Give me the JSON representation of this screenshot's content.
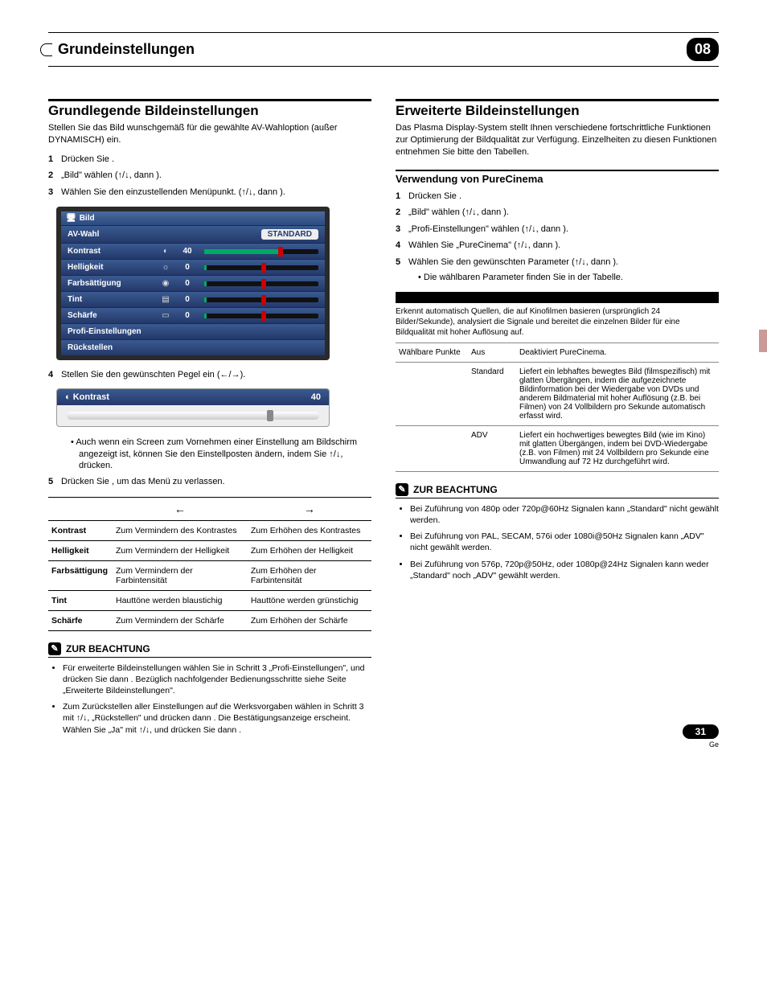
{
  "header": {
    "title": "Grundeinstellungen",
    "chapter": "08"
  },
  "left": {
    "section_title": "Grundlegende Bildeinstellungen",
    "intro": "Stellen Sie das Bild wunschgemäß für die gewählte AV-Wahloption (außer DYNAMISCH) ein.",
    "steps": {
      "s1_pre": "Drücken Sie ",
      "s2_pre": "„Bild\" wählen (",
      "s2_mid": ", dann ",
      "s2_post": ").",
      "s3_pre": "Wählen Sie den einzustellenden Menüpunkt. (",
      "s3_mid": ", dann ",
      "s3_post": ").",
      "s4_pre": "Stellen Sie den gewünschten Pegel ein (",
      "s4_post": ").",
      "bullet1": "Auch wenn ein Screen zum Vornehmen einer Einstellung am Bildschirm angezeigt ist, können Sie den Einstellposten ändern, indem Sie ↑/↓, drücken.",
      "s5_pre": "Drücken Sie ",
      "s5_post": ", um das Menü zu verlassen."
    },
    "menu": {
      "title": "Bild",
      "rows": [
        {
          "label": "AV-Wahl",
          "icon": "",
          "value": "",
          "badge": "STANDARD",
          "fill": 0,
          "thumb": 0,
          "show_slider": false
        },
        {
          "label": "Kontrast",
          "icon": "◐",
          "value": "40",
          "fill": 65,
          "thumb": 65,
          "show_slider": true
        },
        {
          "label": "Helligkeit",
          "icon": "☼",
          "value": "0",
          "fill": 2,
          "thumb": 50,
          "show_slider": true
        },
        {
          "label": "Farbsättigung",
          "icon": "◉",
          "value": "0",
          "fill": 2,
          "thumb": 50,
          "show_slider": true
        },
        {
          "label": "Tint",
          "icon": "�held",
          "value": "0",
          "fill": 2,
          "thumb": 50,
          "show_slider": true,
          "icon2": "▤"
        },
        {
          "label": "Schärfe",
          "icon": "▭",
          "value": "0",
          "fill": 2,
          "thumb": 50,
          "show_slider": true
        },
        {
          "label": "Profi-Einstellungen",
          "icon": "",
          "value": "",
          "show_slider": false
        },
        {
          "label": "Rückstellen",
          "icon": "",
          "value": "",
          "show_slider": false
        }
      ]
    },
    "contrast_popup": {
      "label": "Kontrast",
      "value": "40"
    },
    "adjust_table": {
      "rows": [
        {
          "label": "Kontrast",
          "left": "Zum Vermindern des Kontrastes",
          "right": "Zum Erhöhen des Kontrastes"
        },
        {
          "label": "Helligkeit",
          "left": "Zum Vermindern der Helligkeit",
          "right": "Zum Erhöhen der Helligkeit"
        },
        {
          "label": "Farbsättigung",
          "left": "Zum Vermindern der Farbintensität",
          "right": "Zum Erhöhen der Farbintensität"
        },
        {
          "label": "Tint",
          "left": "Hauttöne werden blaustichig",
          "right": "Hauttöne werden grünstichig"
        },
        {
          "label": "Schärfe",
          "left": "Zum Vermindern der Schärfe",
          "right": "Zum Erhöhen der Schärfe"
        }
      ]
    },
    "note_title": "ZUR BEACHTUNG",
    "notes": [
      "Für erweiterte Bildeinstellungen wählen Sie in Schritt 3 „Profi-Einstellungen\", und drücken Sie dann . Bezüglich nachfolgender Bedienungsschritte siehe Seite „Erweiterte Bildeinstellungen\".",
      "Zum Zurückstellen aller Einstellungen auf die Werksvorgaben wählen in Schritt 3 mit ↑/↓, „Rückstellen\" und drücken dann . Die Bestätigungsanzeige erscheint. Wählen Sie „Ja\" mit ↑/↓, und drücken Sie dann ."
    ]
  },
  "right": {
    "section_title": "Erweiterte Bildeinstellungen",
    "intro": "Das Plasma Display-System stellt Ihnen verschiedene fortschrittliche Funktionen zur Optimierung der Bildqualität zur Verfügung. Einzelheiten zu diesen Funktionen entnehmen Sie bitte den Tabellen.",
    "sub_title": "Verwendung von PureCinema",
    "steps": {
      "s1_pre": "Drücken Sie ",
      "s1_post": ".",
      "s2_pre": "„Bild\" wählen (",
      "s2_mid": ", dann ",
      "s2_post": ").",
      "s3_pre": "„Profi-Einstellungen\" wählen (",
      "s3_mid": ", dann ",
      "s3_post": ").",
      "s4_pre": "Wählen Sie „PureCinema\" (",
      "s4_mid": ", dann ",
      "s4_post": ").",
      "s5_pre": "Wählen Sie den gewünschten Parameter (",
      "s5_mid": ", dann ",
      "s5_post": ").",
      "bullet": "Die wählbaren Parameter finden Sie in der Tabelle."
    },
    "black_desc": "Erkennt automatisch Quellen, die auf Kinofilmen basieren (ursprünglich 24 Bilder/Sekunde), analysiert die Signale und bereitet die einzelnen Bilder für eine Bildqualität mit hoher Auflösung auf.",
    "pc_table": {
      "col1_label": "Wählbare Punkte",
      "rows": [
        {
          "c2": "Aus",
          "c3": "Deaktiviert PureCinema."
        },
        {
          "c2": "Standard",
          "c3": "Liefert ein lebhaftes bewegtes Bild (filmspezifisch) mit glatten Übergängen, indem die aufgezeichnete Bildinformation bei der Wiedergabe von DVDs und anderem Bildmaterial mit hoher Auflösung (z.B. bei Filmen) von 24 Vollbildern pro Sekunde automatisch erfasst wird."
        },
        {
          "c2": "ADV",
          "c3": "Liefert ein hochwertiges bewegtes Bild (wie im Kino) mit glatten Übergängen, indem bei DVD-Wiedergabe (z.B. von Filmen) mit 24 Vollbildern pro Sekunde eine Umwandlung auf 72 Hz durchgeführt wird."
        }
      ]
    },
    "note_title": "ZUR BEACHTUNG",
    "notes": [
      "Bei Zuführung von 480p oder 720p@60Hz Signalen kann „Standard\" nicht gewählt werden.",
      "Bei Zuführung von PAL, SECAM, 576i oder 1080i@50Hz Signalen kann „ADV\" nicht gewählt werden.",
      "Bei Zuführung von 576p, 720p@50Hz, oder 1080p@24Hz Signalen kann weder „Standard\" noch „ADV\" gewählt werden."
    ]
  },
  "footer": {
    "page": "31",
    "lang": "Ge"
  },
  "colors": {
    "menu_row_bg": "#2a4a80",
    "slider_fill": "#0a6",
    "slider_thumb": "#c00",
    "side_tab": "#c99"
  }
}
